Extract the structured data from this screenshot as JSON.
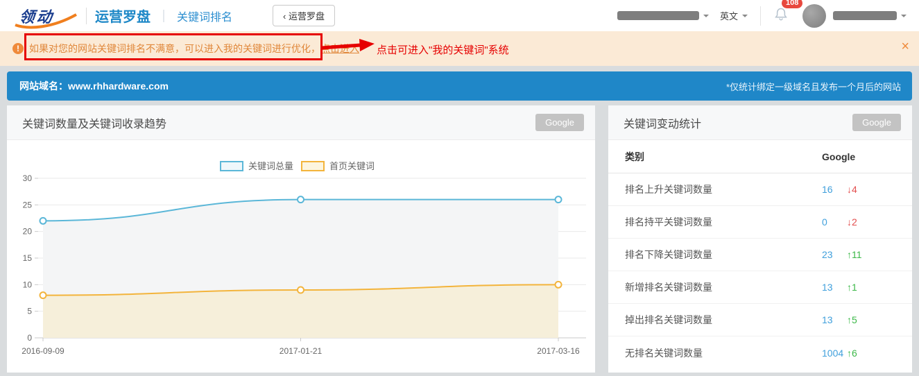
{
  "header": {
    "logo_text": "领动",
    "product_name": "运营罗盘",
    "title_separator": "｜",
    "page_title": "关键词排名",
    "back_button": "‹ 运营罗盘",
    "language": "英文",
    "notification_count": "108"
  },
  "notice": {
    "message": "如果对您的网站关键词排名不满意，可以进入我的关键词进行优化，",
    "link": "点击进入",
    "annotation": "点击可进入\"我的关键词\"系统",
    "close": "×"
  },
  "domain_bar": {
    "label": "网站域名：www.rhhardware.com",
    "note": "*仅统计绑定一级域名且发布一个月后的网站"
  },
  "trend_panel": {
    "title": "关键词数量及关键词收录趋势",
    "source_button": "Google"
  },
  "chart_data": {
    "type": "area",
    "title": "关键词数量及关键词收录趋势",
    "x": [
      "2016-09-09",
      "2017-01-21",
      "2017-03-16"
    ],
    "series": [
      {
        "name": "关键词总量",
        "values": [
          22,
          26,
          26
        ],
        "color": "#5bb7d8",
        "fill": "#f4f5f6",
        "legend_fill": "#eef7fb"
      },
      {
        "name": "首页关键词",
        "values": [
          8,
          9,
          10
        ],
        "color": "#f3b43c",
        "fill": "#f6efda",
        "legend_fill": "#fdf5df"
      }
    ],
    "ylim": [
      0,
      30
    ],
    "ytick_step": 5,
    "grid": true,
    "legend_position": "top"
  },
  "stats_panel": {
    "title": "关键词变动统计",
    "source_button": "Google",
    "col_category": "类别",
    "col_value": "Google",
    "rows": [
      {
        "label": "排名上升关键词数量",
        "value": "16",
        "change": "4",
        "direction": "down"
      },
      {
        "label": "排名持平关键词数量",
        "value": "0",
        "change": "2",
        "direction": "down"
      },
      {
        "label": "排名下降关键词数量",
        "value": "23",
        "change": "11",
        "direction": "up"
      },
      {
        "label": "新增排名关键词数量",
        "value": "13",
        "change": "1",
        "direction": "up"
      },
      {
        "label": "掉出排名关键词数量",
        "value": "13",
        "change": "5",
        "direction": "up"
      },
      {
        "label": "无排名关键词数量",
        "value": "1004",
        "change": "6",
        "direction": "up"
      }
    ],
    "colors": {
      "value": "#41a0dc",
      "up": "#3cb848",
      "down": "#e34f4f"
    }
  },
  "theme": {
    "brand_blue": "#1f87c8",
    "notice_bg": "#fbead6",
    "notice_orange": "#e0873a",
    "annotation_red": "#e60000",
    "panel_header_bg": "#f7f8f9"
  }
}
